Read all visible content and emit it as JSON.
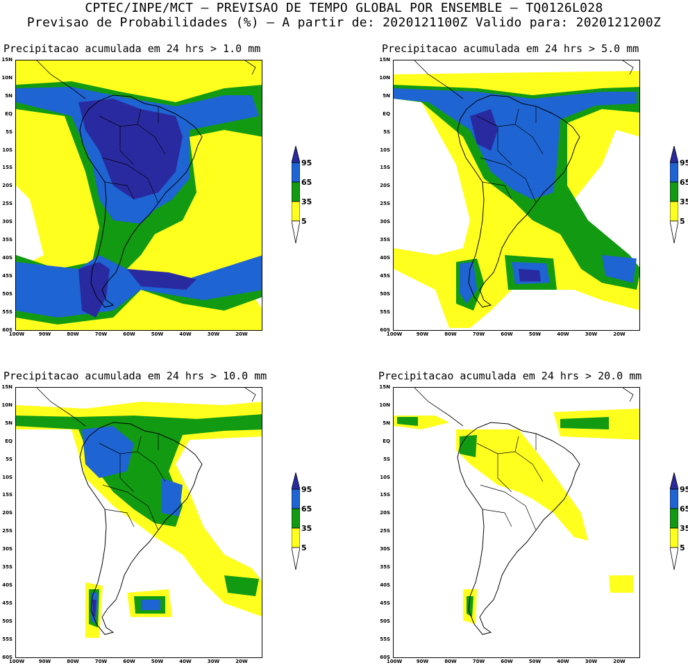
{
  "header": {
    "line1": "CPTEC/INPE/MCT – PREVISAO DE TEMPO GLOBAL POR ENSEMBLE – TQ0126L028",
    "line2": "Previsao de Probabilidades (%) –  A partir de: 2020121100Z  Valido para: 2020121200Z"
  },
  "panels": [
    {
      "title": "Precipitacao acumulada em 24 hrs > 1.0 mm"
    },
    {
      "title": "Precipitacao acumulada em 24 hrs > 5.0 mm"
    },
    {
      "title": "Precipitacao acumulada em 24 hrs > 10.0 mm"
    },
    {
      "title": "Precipitacao acumulada em 24 hrs > 20.0 mm"
    }
  ],
  "lat_labels": [
    "15N",
    "10N",
    "5N",
    "EQ",
    "5S",
    "10S",
    "15S",
    "20S",
    "25S",
    "30S",
    "35S",
    "40S",
    "45S",
    "50S",
    "55S",
    "60S"
  ],
  "lon_labels": [
    "100W",
    "90W",
    "80W",
    "70W",
    "60W",
    "50W",
    "40W",
    "30W",
    "20W"
  ],
  "legend": {
    "levels": [
      "95",
      "65",
      "35",
      "5"
    ],
    "colors": {
      "yellow": "#ffff1e",
      "green": "#129a12",
      "blue": "#1e64d2",
      "darkblue": "#2a2aa0"
    }
  }
}
